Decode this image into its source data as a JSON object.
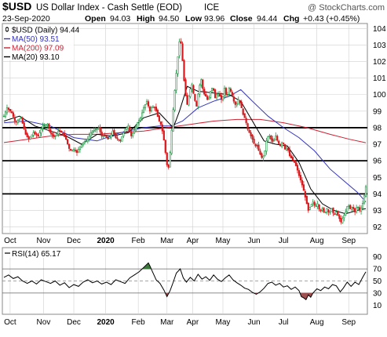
{
  "header": {
    "symbol": "$USD",
    "description": "US Dollar Index - Cash Settle (EOD)",
    "exchange": "ICE",
    "watermark": "@ StockCharts.com",
    "date": "23-Sep-2020",
    "open_label": "Open",
    "open": "94.03",
    "high_label": "High",
    "high": "94.50",
    "low_label": "Low",
    "low": "93.96",
    "close_label": "Close",
    "close": "94.44",
    "chg_label": "Chg",
    "chg": "+0.43 (+0.45%)"
  },
  "legend": [
    {
      "label": "$USD (Daily) 94.44",
      "color": "#000000",
      "marker": "candle"
    },
    {
      "label": "MA(50) 93.51",
      "color": "#3333bb",
      "marker": "line"
    },
    {
      "label": "MA(200) 97.09",
      "color": "#cc2233",
      "marker": "line"
    },
    {
      "label": "MA(20) 93.10",
      "color": "#000000",
      "marker": "line"
    }
  ],
  "rsi_legend": "RSI(14) 65.17",
  "colors": {
    "up": "#1a9641",
    "down": "#d7191c",
    "ma50": "#3333bb",
    "ma200": "#cc2233",
    "ma20": "#000000",
    "grid": "#d0d0d0",
    "rsi_overbought_fill": "#3c7a3c",
    "rsi_oversold_fill": "#a05050"
  },
  "chart_data": [
    {
      "type": "candlestick",
      "title": "$USD US Dollar Index - Cash Settle (EOD) ICE",
      "ylim": [
        91.6,
        104.3
      ],
      "y_ticks": [
        92,
        93,
        94,
        95,
        96,
        97,
        98,
        99,
        100,
        101,
        102,
        103,
        104
      ],
      "x_tick_labels": [
        "Oct",
        "Nov",
        "Dec",
        "2020",
        "Feb",
        "Mar",
        "Apr",
        "May",
        "Jun",
        "Jul",
        "Aug",
        "Sep"
      ],
      "horizontal_lines": [
        98,
        96,
        94
      ],
      "grid": true,
      "close_points": [
        [
          0,
          98.7
        ],
        [
          4,
          99.2
        ],
        [
          10,
          98.9
        ],
        [
          15,
          98.3
        ],
        [
          22,
          98.6
        ],
        [
          28,
          97.6
        ],
        [
          32,
          97.3
        ],
        [
          38,
          97.7
        ],
        [
          44,
          97.5
        ],
        [
          50,
          98.1
        ],
        [
          56,
          98.2
        ],
        [
          60,
          97.7
        ],
        [
          65,
          97.4
        ],
        [
          70,
          97.8
        ],
        [
          75,
          97.7
        ],
        [
          80,
          97.3
        ],
        [
          85,
          96.6
        ],
        [
          90,
          96.7
        ],
        [
          94,
          96.5
        ],
        [
          97,
          96.8
        ],
        [
          102,
          97.1
        ],
        [
          108,
          97.3
        ],
        [
          112,
          97.7
        ],
        [
          118,
          97.9
        ],
        [
          122,
          98.0
        ],
        [
          126,
          97.5
        ],
        [
          130,
          97.5
        ],
        [
          134,
          97.3
        ],
        [
          137,
          97.5
        ],
        [
          140,
          97.8
        ],
        [
          144,
          97.4
        ],
        [
          147,
          97.3
        ],
        [
          150,
          97.2
        ],
        [
          153,
          97.6
        ],
        [
          156,
          97.9
        ],
        [
          160,
          98.1
        ],
        [
          164,
          97.5
        ],
        [
          168,
          97.8
        ],
        [
          172,
          98.3
        ],
        [
          176,
          98.6
        ],
        [
          180,
          99.2
        ],
        [
          184,
          99.6
        ],
        [
          188,
          99.0
        ],
        [
          191,
          99.3
        ],
        [
          195,
          99.2
        ],
        [
          199,
          98.5
        ],
        [
          202,
          98.2
        ],
        [
          205,
          97.6
        ],
        [
          207,
          96.9
        ],
        [
          209,
          96.1
        ],
        [
          211,
          95.4
        ],
        [
          213,
          95.8
        ],
        [
          215,
          97.2
        ],
        [
          217,
          98.5
        ],
        [
          219,
          99.7
        ],
        [
          221,
          100.8
        ],
        [
          223,
          101.8
        ],
        [
          225,
          102.8
        ],
        [
          227,
          103.6
        ],
        [
          229,
          102.6
        ],
        [
          231,
          101.5
        ],
        [
          233,
          100.2
        ],
        [
          236,
          99.4
        ],
        [
          239,
          100.2
        ],
        [
          242,
          100.6
        ],
        [
          245,
          99.8
        ],
        [
          248,
          99.3
        ],
        [
          251,
          100.4
        ],
        [
          254,
          100.9
        ],
        [
          257,
          100.1
        ],
        [
          260,
          99.9
        ],
        [
          263,
          99.6
        ],
        [
          266,
          100.2
        ],
        [
          269,
          100.5
        ],
        [
          272,
          99.8
        ],
        [
          275,
          100.1
        ],
        [
          278,
          99.9
        ],
        [
          281,
          99.6
        ],
        [
          284,
          100.4
        ],
        [
          287,
          99.8
        ],
        [
          290,
          100.4
        ],
        [
          293,
          100.1
        ],
        [
          296,
          99.6
        ],
        [
          299,
          99.3
        ],
        [
          302,
          99.7
        ],
        [
          305,
          99.4
        ],
        [
          308,
          98.8
        ],
        [
          311,
          98.5
        ],
        [
          314,
          97.9
        ],
        [
          317,
          97.6
        ],
        [
          320,
          97.3
        ],
        [
          323,
          96.9
        ],
        [
          326,
          96.9
        ],
        [
          329,
          96.5
        ],
        [
          332,
          96.2
        ],
        [
          335,
          96.3
        ],
        [
          338,
          97.2
        ],
        [
          341,
          97.6
        ],
        [
          344,
          97.3
        ],
        [
          347,
          97.1
        ],
        [
          350,
          97.5
        ],
        [
          353,
          97.1
        ],
        [
          356,
          96.9
        ],
        [
          359,
          97.2
        ],
        [
          362,
          96.7
        ],
        [
          365,
          96.8
        ],
        [
          368,
          96.3
        ],
        [
          371,
          96.1
        ],
        [
          374,
          95.9
        ],
        [
          377,
          95.6
        ],
        [
          380,
          95.1
        ],
        [
          383,
          94.7
        ],
        [
          386,
          94.2
        ],
        [
          389,
          93.6
        ],
        [
          392,
          93.0
        ],
        [
          395,
          93.3
        ],
        [
          398,
          93.5
        ],
        [
          401,
          93.2
        ],
        [
          404,
          93.4
        ],
        [
          407,
          92.9
        ],
        [
          410,
          93.1
        ],
        [
          413,
          92.8
        ],
        [
          416,
          93.1
        ],
        [
          419,
          92.8
        ],
        [
          422,
          93.1
        ],
        [
          425,
          92.7
        ],
        [
          428,
          92.9
        ],
        [
          431,
          92.6
        ],
        [
          434,
          92.3
        ],
        [
          437,
          92.6
        ],
        [
          440,
          92.9
        ],
        [
          443,
          93.4
        ],
        [
          446,
          93.1
        ],
        [
          449,
          93.2
        ],
        [
          452,
          92.9
        ],
        [
          455,
          93.3
        ],
        [
          458,
          93.0
        ],
        [
          461,
          93.2
        ],
        [
          464,
          93.9
        ],
        [
          466,
          94.44
        ]
      ],
      "ma50_points": [
        [
          0,
          98.3
        ],
        [
          30,
          98.4
        ],
        [
          60,
          98.1
        ],
        [
          90,
          97.4
        ],
        [
          120,
          97.2
        ],
        [
          150,
          97.7
        ],
        [
          180,
          98.0
        ],
        [
          200,
          98.1
        ],
        [
          215,
          98.1
        ],
        [
          230,
          98.4
        ],
        [
          250,
          99.2
        ],
        [
          270,
          99.6
        ],
        [
          290,
          99.9
        ],
        [
          305,
          100.3
        ],
        [
          320,
          99.6
        ],
        [
          340,
          98.7
        ],
        [
          360,
          98.0
        ],
        [
          380,
          97.4
        ],
        [
          400,
          96.6
        ],
        [
          420,
          95.5
        ],
        [
          440,
          94.7
        ],
        [
          455,
          94.1
        ],
        [
          466,
          93.51
        ]
      ],
      "ma200_points": [
        [
          0,
          97.1
        ],
        [
          30,
          97.3
        ],
        [
          60,
          97.5
        ],
        [
          90,
          97.6
        ],
        [
          120,
          97.6
        ],
        [
          150,
          97.7
        ],
        [
          180,
          97.8
        ],
        [
          210,
          98.0
        ],
        [
          240,
          98.2
        ],
        [
          270,
          98.4
        ],
        [
          300,
          98.5
        ],
        [
          330,
          98.5
        ],
        [
          360,
          98.3
        ],
        [
          390,
          98.0
        ],
        [
          420,
          97.6
        ],
        [
          445,
          97.3
        ],
        [
          466,
          97.09
        ]
      ],
      "ma20_points": [
        [
          0,
          98.4
        ],
        [
          20,
          98.7
        ],
        [
          40,
          98.1
        ],
        [
          60,
          97.8
        ],
        [
          80,
          97.5
        ],
        [
          100,
          97.0
        ],
        [
          120,
          97.6
        ],
        [
          140,
          97.5
        ],
        [
          160,
          97.7
        ],
        [
          180,
          98.6
        ],
        [
          200,
          98.9
        ],
        [
          210,
          98.4
        ],
        [
          218,
          98.0
        ],
        [
          226,
          99.0
        ],
        [
          236,
          100.5
        ],
        [
          250,
          100.2
        ],
        [
          270,
          100.1
        ],
        [
          290,
          100.0
        ],
        [
          305,
          99.6
        ],
        [
          320,
          98.4
        ],
        [
          335,
          97.2
        ],
        [
          350,
          97.0
        ],
        [
          365,
          96.9
        ],
        [
          380,
          95.9
        ],
        [
          395,
          94.3
        ],
        [
          410,
          93.4
        ],
        [
          425,
          93.0
        ],
        [
          440,
          92.8
        ],
        [
          455,
          93.0
        ],
        [
          466,
          93.1
        ]
      ]
    },
    {
      "type": "line",
      "title": "RSI(14) 65.17",
      "ylim": [
        0,
        100
      ],
      "y_ticks": [
        10,
        30,
        50,
        70,
        90
      ],
      "reference_lines": [
        30,
        50,
        70
      ],
      "x_tick_labels": [
        "Oct",
        "Nov",
        "Dec",
        "2020",
        "Feb",
        "Mar",
        "Apr",
        "May",
        "Jun",
        "Jul",
        "Aug",
        "Sep"
      ],
      "rsi_points": [
        [
          0,
          56
        ],
        [
          6,
          60
        ],
        [
          12,
          54
        ],
        [
          18,
          57
        ],
        [
          24,
          50
        ],
        [
          30,
          46
        ],
        [
          36,
          50
        ],
        [
          42,
          45
        ],
        [
          48,
          52
        ],
        [
          54,
          49
        ],
        [
          60,
          46
        ],
        [
          66,
          50
        ],
        [
          72,
          43
        ],
        [
          78,
          47
        ],
        [
          84,
          39
        ],
        [
          90,
          44
        ],
        [
          96,
          41
        ],
        [
          102,
          48
        ],
        [
          108,
          52
        ],
        [
          114,
          47
        ],
        [
          120,
          50
        ],
        [
          126,
          45
        ],
        [
          132,
          48
        ],
        [
          138,
          44
        ],
        [
          144,
          52
        ],
        [
          150,
          49
        ],
        [
          156,
          46
        ],
        [
          162,
          55
        ],
        [
          168,
          60
        ],
        [
          174,
          65
        ],
        [
          178,
          70
        ],
        [
          182,
          75
        ],
        [
          186,
          80
        ],
        [
          188,
          75
        ],
        [
          191,
          66
        ],
        [
          196,
          52
        ],
        [
          201,
          46
        ],
        [
          206,
          35
        ],
        [
          210,
          24
        ],
        [
          214,
          34
        ],
        [
          218,
          48
        ],
        [
          222,
          63
        ],
        [
          227,
          70
        ],
        [
          231,
          55
        ],
        [
          235,
          48
        ],
        [
          240,
          56
        ],
        [
          245,
          50
        ],
        [
          250,
          61
        ],
        [
          255,
          53
        ],
        [
          260,
          57
        ],
        [
          265,
          51
        ],
        [
          270,
          60
        ],
        [
          275,
          53
        ],
        [
          280,
          49
        ],
        [
          285,
          55
        ],
        [
          290,
          60
        ],
        [
          295,
          52
        ],
        [
          300,
          47
        ],
        [
          305,
          43
        ],
        [
          310,
          38
        ],
        [
          315,
          36
        ],
        [
          320,
          31
        ],
        [
          325,
          28
        ],
        [
          330,
          32
        ],
        [
          335,
          38
        ],
        [
          340,
          46
        ],
        [
          345,
          48
        ],
        [
          350,
          43
        ],
        [
          355,
          46
        ],
        [
          360,
          40
        ],
        [
          365,
          42
        ],
        [
          370,
          36
        ],
        [
          375,
          40
        ],
        [
          380,
          34
        ],
        [
          383,
          24
        ],
        [
          386,
          22
        ],
        [
          389,
          19
        ],
        [
          392,
          27
        ],
        [
          395,
          23
        ],
        [
          398,
          30
        ],
        [
          403,
          37
        ],
        [
          408,
          34
        ],
        [
          413,
          40
        ],
        [
          418,
          37
        ],
        [
          423,
          44
        ],
        [
          428,
          42
        ],
        [
          433,
          32
        ],
        [
          437,
          38
        ],
        [
          442,
          48
        ],
        [
          447,
          41
        ],
        [
          452,
          48
        ],
        [
          457,
          44
        ],
        [
          462,
          56
        ],
        [
          466,
          65
        ]
      ]
    }
  ]
}
